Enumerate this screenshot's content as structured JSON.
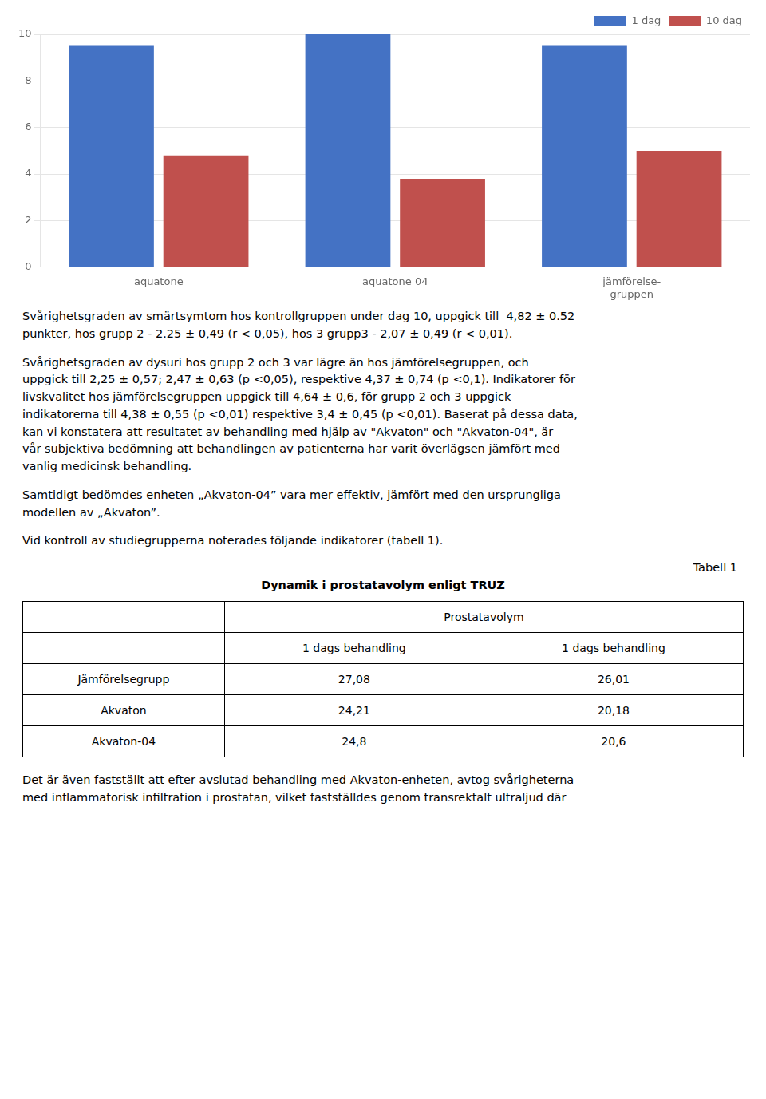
{
  "chart_data": {
    "type": "bar",
    "categories": [
      "aquatone",
      "aquatone 04",
      "jämförelse-\ngruppen"
    ],
    "series": [
      {
        "name": "1 dag",
        "color": "#4472C4",
        "values": [
          9.5,
          10.0,
          9.5
        ]
      },
      {
        "name": "10 dag",
        "color": "#C0504D",
        "values": [
          4.8,
          3.8,
          5.0
        ]
      }
    ],
    "ylim": [
      0,
      10
    ],
    "yticks": [
      0,
      2,
      4,
      6,
      8,
      10
    ],
    "grid": true,
    "legend": "upper right"
  },
  "paragraphs": [
    "Svårighetsgraden av smärtsymtom hos kontrollgruppen under dag 10, uppgick till  4,82 ± 0.52\npunkter, hos grupp 2 - 2.25 ± 0,49 (r < 0,05), hos 3 grupp3 - 2,07 ± 0,49 (r < 0,01).",
    "Svårighetsgraden av dysuri hos grupp 2 och 3 var lägre än hos jämförelsegruppen, och\nuppgick till 2,25 ± 0,57; 2,47 ± 0,63 (p <0,05), respektive 4,37 ± 0,74 (p <0,1). Indikatorer för\nlivskvalitet hos jämförelsegruppen uppgick till 4,64 ± 0,6, för grupp 2 och 3 uppgick\nindikatorerna till 4,38 ± 0,55 (p <0,01) respektive 3,4 ± 0,45 (p <0,01). Baserat på dessa data,\nkan vi konstatera att resultatet av behandling med hjälp av \"Akvaton\" och \"Akvaton-04\", är\nvår subjektiva bedömning att behandlingen av patienterna har varit överlägsen jämfört med\nvanlig medicinsk behandling.",
    "Samtidigt bedömdes enheten „Akvaton-04” vara mer effektiv, jämfört med den ursprungliga\nmodellen av „Akvaton”.",
    "Vid kontroll av studiegrupperna noterades följande indikatorer (tabell 1)."
  ],
  "table": {
    "label": "Tabell 1",
    "title": "Dynamik i prostatavolym enligt TRUZ",
    "header_merged": "Prostatavolym",
    "col_headers": [
      "1 dags behandling",
      "1 dags behandling"
    ],
    "rows": [
      [
        "Jämförelsegrupp",
        "27,08",
        "26,01"
      ],
      [
        "Akvaton",
        "24,21",
        "20,18"
      ],
      [
        "Akvaton-04",
        "24,8",
        "20,6"
      ]
    ]
  },
  "paragraphs_after": [
    "Det är även fastställt att efter avslutad behandling med Akvaton-enheten, avtog svårigheterna\nmed inflammatorisk infiltration i prostatan, vilket fastställdes genom transrektalt ultraljud där"
  ]
}
